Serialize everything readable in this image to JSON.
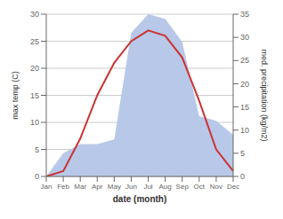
{
  "chart_data": {
    "type": "line",
    "xlabel": "date (month)",
    "ylabel": "max temp (C)",
    "y2label": "med. precipitation (kg/m2)",
    "categories": [
      "Jan",
      "Feb",
      "Mar",
      "Apr",
      "May",
      "Jun",
      "Jul",
      "Aug",
      "Sep",
      "Oct",
      "Nov",
      "Dec"
    ],
    "series": [
      {
        "type": "area",
        "axis": "y2",
        "color": "#b8c8e8",
        "values": [
          0,
          5,
          7,
          7,
          8,
          31,
          35,
          34,
          29,
          13,
          12,
          9
        ]
      },
      {
        "type": "line",
        "color": "#cc3333",
        "values": [
          0,
          1,
          7,
          15,
          21,
          25,
          27,
          26,
          22,
          14,
          5,
          1
        ]
      }
    ],
    "ylim": [
      0,
      30
    ],
    "yticks": [
      0,
      5,
      10,
      15,
      20,
      25,
      30
    ],
    "y2lim": [
      0,
      35
    ],
    "y2ticks": [
      0,
      5,
      10,
      15,
      20,
      25,
      30,
      35
    ],
    "grid": true
  }
}
